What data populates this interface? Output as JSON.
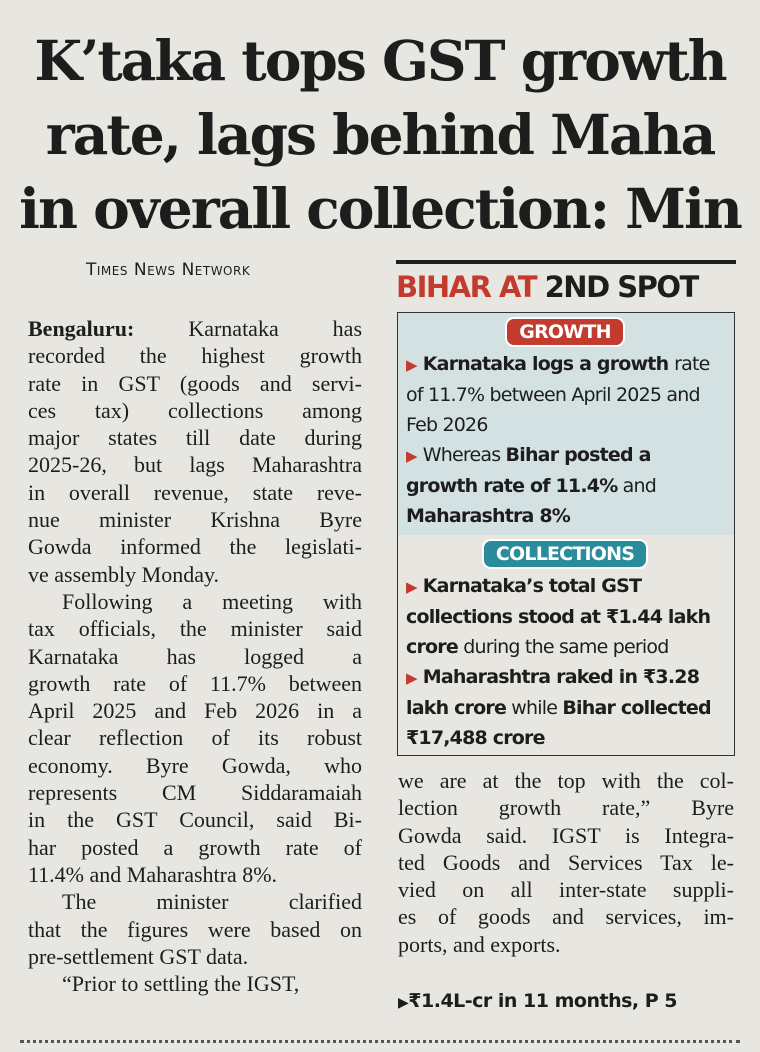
{
  "headline": {
    "lines": [
      "K’taka tops GST growth",
      "rate, lags behind Maha",
      "in overall collection: Min"
    ]
  },
  "byline": "Times News Network",
  "left_column": {
    "dateline": "Bengaluru:",
    "paragraphs": [
      [
        "Karnataka has",
        "recorded the highest growth",
        "rate in GST (goods and servi-",
        "ces tax) collections among",
        "major states till date during",
        "2025-26, but lags Maharashtra",
        "in overall revenue, state reve-",
        "nue minister Krishna Byre",
        "Gowda informed the legislati-",
        "ve assembly Monday."
      ],
      [
        "Following a meeting with",
        "tax officials, the minister said",
        "Karnataka has logged a",
        "growth rate of 11.7% between",
        "April 2025 and Feb 2026 in a",
        "clear reflection of its robust",
        "economy. Byre Gowda, who",
        "represents CM Siddaramaiah",
        "in the GST Council, said Bi-",
        "har posted a growth rate of",
        "11.4% and Maharashtra 8%."
      ],
      [
        "The minister clarified",
        "that the figures were based on",
        "pre-settlement GST data."
      ],
      [
        "“Prior to settling the IGST,"
      ]
    ]
  },
  "sidebar": {
    "title": {
      "red": "BIHAR AT",
      "black": "2ND SPOT"
    },
    "sections": [
      {
        "label": "GROWTH",
        "items": [
          [
            {
              "text": "Karnataka logs a growth ",
              "bold": true
            },
            {
              "text": "rate of 11.7% between April 2025 and Feb 2026",
              "bold": false
            }
          ],
          [
            {
              "text": "Whereas ",
              "bold": false
            },
            {
              "text": "Bihar posted a growth rate of 11.4%",
              "bold": true
            },
            {
              "text": " and ",
              "bold": false
            },
            {
              "text": "Maharashtra 8%",
              "bold": true
            }
          ]
        ]
      },
      {
        "label": "COLLECTIONS",
        "items": [
          [
            {
              "text": "Karnataka’s total GST collections stood at ₹1.44 lakh crore",
              "bold": true
            },
            {
              "text": " during the same period",
              "bold": false
            }
          ],
          [
            {
              "text": "Maharashtra raked in ₹3.28 lakh crore",
              "bold": true
            },
            {
              "text": " while ",
              "bold": false
            },
            {
              "text": "Bihar collected ₹17,488 crore",
              "bold": true
            }
          ]
        ]
      }
    ]
  },
  "right_column": {
    "lines": [
      "we are at the top with the col-",
      "lection growth rate,” Byre",
      "Gowda said. IGST is Integra-",
      "ted Goods and Services Tax le-",
      "vied on all inter-state suppli-",
      "es of goods and services, im-",
      "ports, and exports."
    ],
    "reference": "₹1.4L-cr in 11 months, P 5"
  }
}
